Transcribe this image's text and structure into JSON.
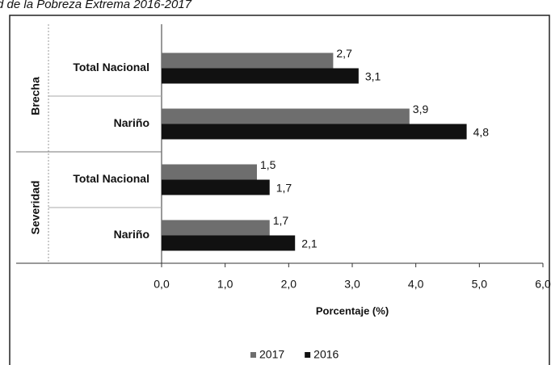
{
  "chart_data": {
    "type": "bar",
    "orientation": "horizontal",
    "title": "d de la Pobreza Extrema 2016-2017",
    "groups": [
      "Brecha",
      "Severidad"
    ],
    "categories": [
      "Total Nacional",
      "Nariño",
      "Total Nacional",
      "Nariño"
    ],
    "series": [
      {
        "name": "2017",
        "color": "#6e6e6e",
        "values": [
          2.7,
          3.9,
          1.5,
          1.7
        ],
        "value_labels": [
          "2,7",
          "3,9",
          "1,5",
          "1,7"
        ]
      },
      {
        "name": "2016",
        "color": "#111111",
        "values": [
          3.1,
          4.8,
          1.7,
          2.1
        ],
        "value_labels": [
          "3,1",
          "4,8",
          "1,7",
          "2,1"
        ]
      }
    ],
    "xlabel": "Porcentaje (%)",
    "xlim": [
      0,
      6
    ],
    "xticks": [
      {
        "value": 0,
        "label": "0,0"
      },
      {
        "value": 1,
        "label": "1,0"
      },
      {
        "value": 2,
        "label": "2,0"
      },
      {
        "value": 3,
        "label": "3,0"
      },
      {
        "value": 4,
        "label": "4,0"
      },
      {
        "value": 5,
        "label": "5,0"
      },
      {
        "value": 6,
        "label": "6,0"
      }
    ],
    "legend": "bottom"
  }
}
